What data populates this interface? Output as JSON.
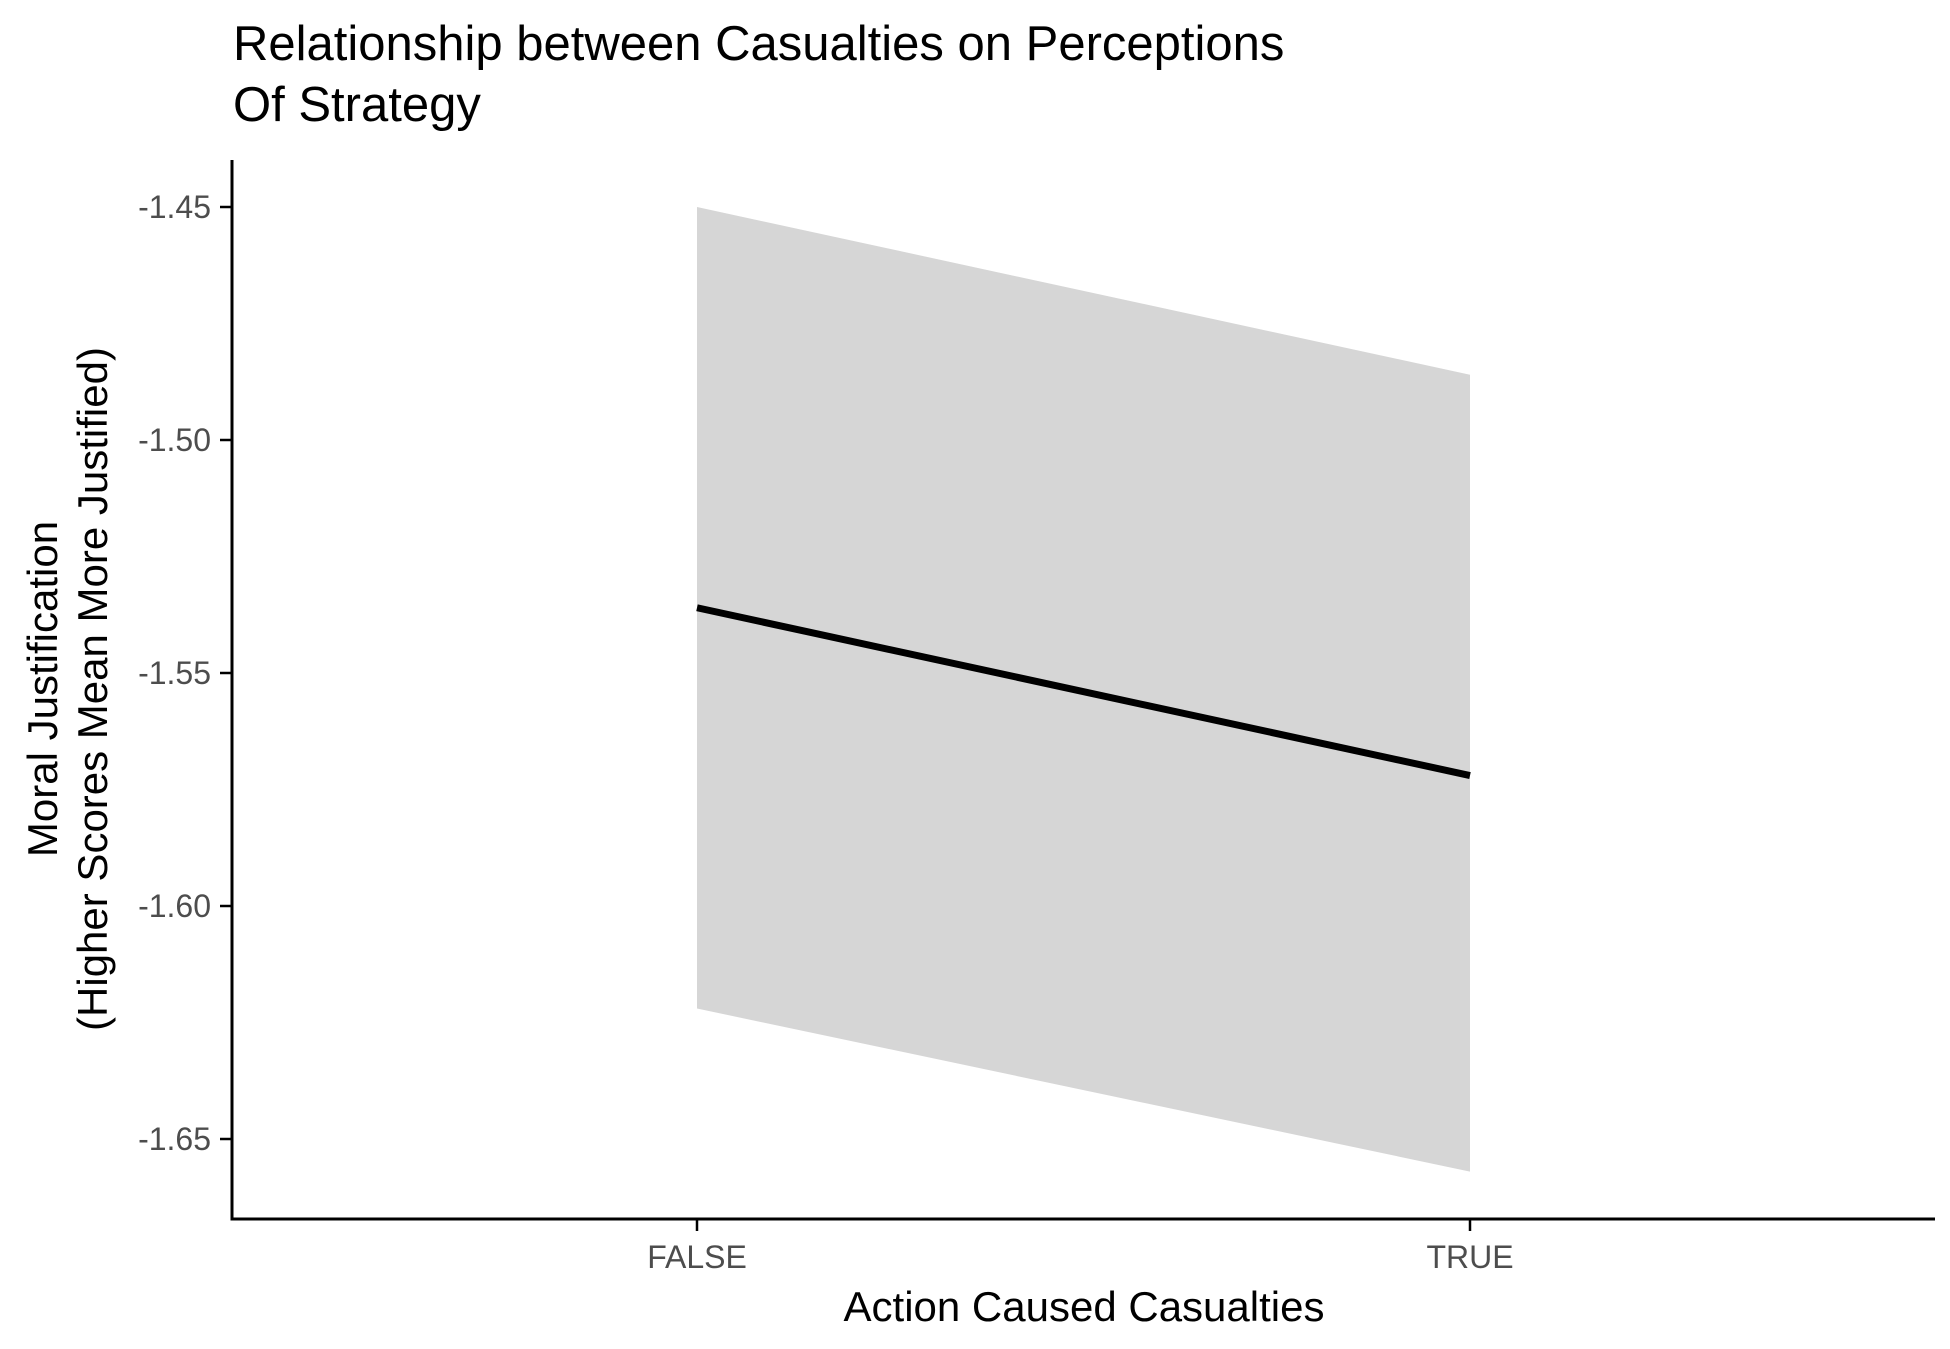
{
  "chart_data": {
    "type": "line",
    "title": "Relationship between Casualties on Perceptions Of Strategy",
    "title_lines": [
      "Relationship between Casualties on Perceptions",
      "Of Strategy"
    ],
    "xlabel": "Action Caused Casualties",
    "ylabel": "Moral Justification (Higher Scores Mean More Justified)",
    "ylabel_lines": [
      "Moral Justification",
      "(Higher Scores Mean More Justified)"
    ],
    "categories": [
      "FALSE",
      "TRUE"
    ],
    "y_ticks": [
      "-1.45",
      "-1.50",
      "-1.55",
      "-1.60",
      "-1.65"
    ],
    "y_tick_values": [
      -1.45,
      -1.5,
      -1.55,
      -1.6,
      -1.65
    ],
    "ylim": [
      -1.667,
      -1.44
    ],
    "grid": false,
    "legend": "none",
    "series": [
      {
        "values": [
          -1.536,
          -1.572
        ],
        "ci_lower": [
          -1.622,
          -1.657
        ],
        "ci_upper": [
          -1.45,
          -1.486
        ]
      }
    ],
    "colors": {
      "line": "#000000",
      "ribbon": "#d6d6d6",
      "axis": "#000000",
      "tick_text": "#4d4d4d"
    }
  }
}
